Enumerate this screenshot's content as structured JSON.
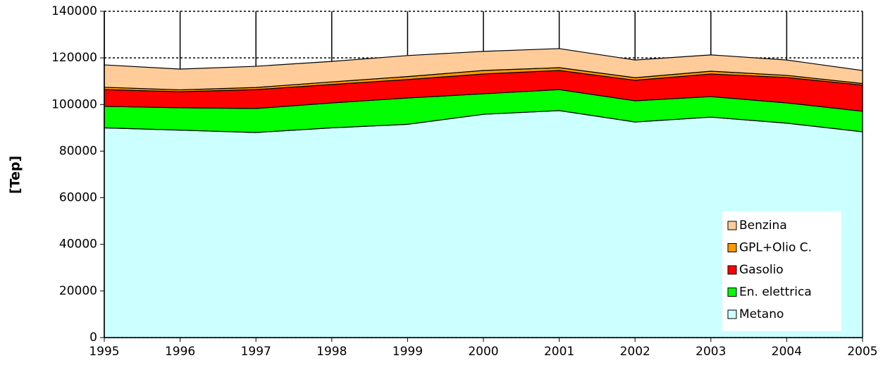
{
  "chart_data": {
    "type": "stacked_area",
    "y_label": "[Tep]",
    "x": [
      1995,
      1996,
      1997,
      1998,
      1999,
      2000,
      2001,
      2002,
      2003,
      2004,
      2005
    ],
    "xlim": [
      1995,
      2005
    ],
    "xticks": [
      1995,
      1996,
      1997,
      1998,
      1999,
      2000,
      2001,
      2002,
      2003,
      2004,
      2005
    ],
    "ylim": [
      0,
      140000
    ],
    "yticks": [
      0,
      20000,
      40000,
      60000,
      80000,
      100000,
      120000,
      140000
    ],
    "grid": true,
    "legend": "bottom-right",
    "series": [
      {
        "name": "Metano",
        "color": "#ccffff",
        "values": [
          90000,
          89000,
          88000,
          90000,
          91500,
          95800,
          97400,
          92500,
          94600,
          92000,
          88300
        ]
      },
      {
        "name": "En. elettrica",
        "color": "#00ff00",
        "values": [
          9200,
          9600,
          10300,
          10700,
          11300,
          8800,
          9000,
          9100,
          8800,
          8700,
          8800
        ]
      },
      {
        "name": "Gasolio",
        "color": "#ff0000",
        "values": [
          7200,
          6900,
          8100,
          7900,
          7900,
          8500,
          8200,
          8800,
          9700,
          10900,
          11200
        ]
      },
      {
        "name": "GPL+Olio C.",
        "color": "#ff9900",
        "values": [
          1000,
          800,
          900,
          1100,
          1300,
          1500,
          1200,
          1100,
          1200,
          900,
          700
        ]
      },
      {
        "name": "Benzina",
        "color": "#ffcc99",
        "values": [
          9600,
          8900,
          9100,
          8800,
          9000,
          8200,
          8200,
          7600,
          7000,
          6600,
          5600
        ]
      }
    ]
  }
}
